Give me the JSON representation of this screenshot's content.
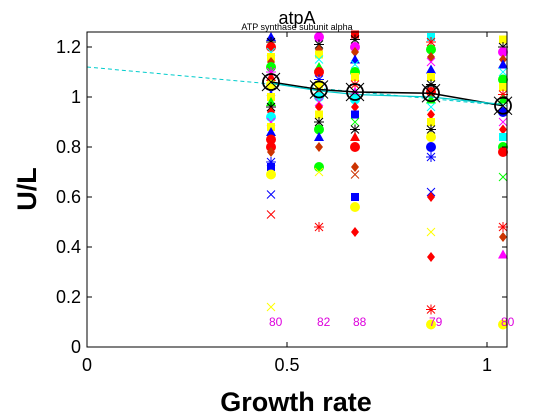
{
  "chart_data": {
    "type": "scatter",
    "title": "atpA",
    "subtitle": "ATP synthase subunit alpha",
    "xlabel": "Growth rate",
    "ylabel": "U/L",
    "xlim": [
      0,
      1.05
    ],
    "ylim": [
      0,
      1.26
    ],
    "xticks": [
      0,
      0.5,
      1
    ],
    "xtick_labels": [
      "0",
      "0.5",
      "1"
    ],
    "yticks": [
      0,
      0.2,
      0.4,
      0.6,
      0.8,
      1,
      1.2
    ],
    "ytick_labels": [
      "0",
      "0.2",
      "0.4",
      "0.6",
      "0.8",
      "1",
      "1.2"
    ],
    "grid": false,
    "legend": "none",
    "groups": [
      {
        "x": 0.46,
        "count_label": "80"
      },
      {
        "x": 0.58,
        "count_label": "82"
      },
      {
        "x": 0.67,
        "count_label": "88"
      },
      {
        "x": 0.86,
        "count_label": "79"
      },
      {
        "x": 1.04,
        "count_label": "80"
      }
    ],
    "mean_line": {
      "x": [
        0.46,
        0.58,
        0.67,
        0.86,
        1.04
      ],
      "y": [
        1.06,
        1.03,
        1.02,
        1.015,
        0.965
      ]
    },
    "median_line": {
      "x": [
        0.46,
        0.58,
        0.67,
        0.86,
        1.04
      ],
      "y": [
        1.055,
        1.025,
        1.01,
        1.0,
        0.97
      ]
    },
    "fit_line": {
      "x": [
        0,
        1.05
      ],
      "y": [
        1.12,
        0.965
      ]
    },
    "samples": [
      {
        "x": 0.46,
        "y": 1.24,
        "marker": "triangle",
        "color": "#0000ff"
      },
      {
        "x": 0.46,
        "y": 1.22,
        "marker": "star",
        "color": "#000000"
      },
      {
        "x": 0.46,
        "y": 1.2,
        "marker": "circle",
        "color": "#ff0000"
      },
      {
        "x": 0.46,
        "y": 1.18,
        "marker": "x",
        "color": "#00ffff"
      },
      {
        "x": 0.46,
        "y": 1.16,
        "marker": "square",
        "color": "#ffff00"
      },
      {
        "x": 0.46,
        "y": 1.14,
        "marker": "diamond",
        "color": "#cc3300"
      },
      {
        "x": 0.46,
        "y": 1.12,
        "marker": "circle",
        "color": "#00ff00"
      },
      {
        "x": 0.46,
        "y": 1.1,
        "marker": "star",
        "color": "#ff00ff"
      },
      {
        "x": 0.46,
        "y": 1.08,
        "marker": "triangle",
        "color": "#ff0000"
      },
      {
        "x": 0.46,
        "y": 1.05,
        "marker": "circle",
        "color": "#ffff00"
      },
      {
        "x": 0.46,
        "y": 1.02,
        "marker": "x",
        "color": "#0000ff"
      },
      {
        "x": 0.46,
        "y": 1.0,
        "marker": "square",
        "color": "#ffff00"
      },
      {
        "x": 0.46,
        "y": 0.98,
        "marker": "triangle",
        "color": "#00ff00"
      },
      {
        "x": 0.46,
        "y": 0.96,
        "marker": "star",
        "color": "#000000"
      },
      {
        "x": 0.46,
        "y": 0.94,
        "marker": "diamond",
        "color": "#ff0000"
      },
      {
        "x": 0.46,
        "y": 0.92,
        "marker": "circle",
        "color": "#00ffff"
      },
      {
        "x": 0.46,
        "y": 0.9,
        "marker": "x",
        "color": "#ff00ff"
      },
      {
        "x": 0.46,
        "y": 0.88,
        "marker": "square",
        "color": "#ffff00"
      },
      {
        "x": 0.46,
        "y": 0.86,
        "marker": "triangle",
        "color": "#0000ff"
      },
      {
        "x": 0.46,
        "y": 0.83,
        "marker": "circle",
        "color": "#ff0000"
      },
      {
        "x": 0.46,
        "y": 0.8,
        "marker": "circle",
        "color": "#ff0000"
      },
      {
        "x": 0.46,
        "y": 0.78,
        "marker": "diamond",
        "color": "#cc3300"
      },
      {
        "x": 0.46,
        "y": 0.74,
        "marker": "star",
        "color": "#0000ff"
      },
      {
        "x": 0.46,
        "y": 0.72,
        "marker": "square",
        "color": "#0000ff"
      },
      {
        "x": 0.46,
        "y": 0.69,
        "marker": "circle",
        "color": "#ffff00"
      },
      {
        "x": 0.46,
        "y": 0.61,
        "marker": "x",
        "color": "#0000ff"
      },
      {
        "x": 0.46,
        "y": 0.53,
        "marker": "x",
        "color": "#ff0000"
      },
      {
        "x": 0.46,
        "y": 0.16,
        "marker": "x",
        "color": "#ffff00"
      },
      {
        "x": 0.58,
        "y": 1.24,
        "marker": "circle",
        "color": "#ff00ff"
      },
      {
        "x": 0.58,
        "y": 1.21,
        "marker": "star",
        "color": "#000000"
      },
      {
        "x": 0.58,
        "y": 1.19,
        "marker": "diamond",
        "color": "#cc3300"
      },
      {
        "x": 0.58,
        "y": 1.17,
        "marker": "square",
        "color": "#ffff00"
      },
      {
        "x": 0.58,
        "y": 1.15,
        "marker": "x",
        "color": "#00ffff"
      },
      {
        "x": 0.58,
        "y": 1.12,
        "marker": "triangle",
        "color": "#00ff00"
      },
      {
        "x": 0.58,
        "y": 1.1,
        "marker": "circle",
        "color": "#ff0000"
      },
      {
        "x": 0.58,
        "y": 1.07,
        "marker": "star",
        "color": "#0000ff"
      },
      {
        "x": 0.58,
        "y": 1.05,
        "marker": "square",
        "color": "#ffff00"
      },
      {
        "x": 0.58,
        "y": 1.02,
        "marker": "triangle",
        "color": "#ff0000"
      },
      {
        "x": 0.58,
        "y": 1.0,
        "marker": "circle",
        "color": "#00ffff"
      },
      {
        "x": 0.58,
        "y": 0.98,
        "marker": "x",
        "color": "#ff00ff"
      },
      {
        "x": 0.58,
        "y": 0.96,
        "marker": "diamond",
        "color": "#ff0000"
      },
      {
        "x": 0.58,
        "y": 0.93,
        "marker": "square",
        "color": "#ffff00"
      },
      {
        "x": 0.58,
        "y": 0.9,
        "marker": "star",
        "color": "#000000"
      },
      {
        "x": 0.58,
        "y": 0.87,
        "marker": "circle",
        "color": "#00ff00"
      },
      {
        "x": 0.58,
        "y": 0.84,
        "marker": "triangle",
        "color": "#0000ff"
      },
      {
        "x": 0.58,
        "y": 0.8,
        "marker": "diamond",
        "color": "#cc3300"
      },
      {
        "x": 0.58,
        "y": 0.72,
        "marker": "circle",
        "color": "#00ff00"
      },
      {
        "x": 0.58,
        "y": 0.7,
        "marker": "x",
        "color": "#ffff00"
      },
      {
        "x": 0.58,
        "y": 0.48,
        "marker": "star",
        "color": "#ff0000"
      },
      {
        "x": 0.67,
        "y": 1.25,
        "marker": "square",
        "color": "#ff0000"
      },
      {
        "x": 0.67,
        "y": 1.23,
        "marker": "star",
        "color": "#000000"
      },
      {
        "x": 0.67,
        "y": 1.2,
        "marker": "circle",
        "color": "#ff00ff"
      },
      {
        "x": 0.67,
        "y": 1.18,
        "marker": "diamond",
        "color": "#cc3300"
      },
      {
        "x": 0.67,
        "y": 1.15,
        "marker": "triangle",
        "color": "#0000ff"
      },
      {
        "x": 0.67,
        "y": 1.13,
        "marker": "x",
        "color": "#00ffff"
      },
      {
        "x": 0.67,
        "y": 1.1,
        "marker": "circle",
        "color": "#00ff00"
      },
      {
        "x": 0.67,
        "y": 1.08,
        "marker": "square",
        "color": "#ffff00"
      },
      {
        "x": 0.67,
        "y": 1.05,
        "marker": "star",
        "color": "#ff0000"
      },
      {
        "x": 0.67,
        "y": 1.02,
        "marker": "triangle",
        "color": "#ff00ff"
      },
      {
        "x": 0.67,
        "y": 0.99,
        "marker": "circle",
        "color": "#00ffff"
      },
      {
        "x": 0.67,
        "y": 0.96,
        "marker": "diamond",
        "color": "#ff0000"
      },
      {
        "x": 0.67,
        "y": 0.93,
        "marker": "square",
        "color": "#0000ff"
      },
      {
        "x": 0.67,
        "y": 0.9,
        "marker": "x",
        "color": "#00ff00"
      },
      {
        "x": 0.67,
        "y": 0.87,
        "marker": "star",
        "color": "#000000"
      },
      {
        "x": 0.67,
        "y": 0.84,
        "marker": "triangle",
        "color": "#ff0000"
      },
      {
        "x": 0.67,
        "y": 0.8,
        "marker": "circle",
        "color": "#ff0000"
      },
      {
        "x": 0.67,
        "y": 0.72,
        "marker": "diamond",
        "color": "#cc3300"
      },
      {
        "x": 0.67,
        "y": 0.69,
        "marker": "x",
        "color": "#cc3300"
      },
      {
        "x": 0.67,
        "y": 0.6,
        "marker": "square",
        "color": "#0000ff"
      },
      {
        "x": 0.67,
        "y": 0.56,
        "marker": "circle",
        "color": "#ffff00"
      },
      {
        "x": 0.67,
        "y": 0.46,
        "marker": "diamond",
        "color": "#ff0000"
      },
      {
        "x": 0.86,
        "y": 1.24,
        "marker": "square",
        "color": "#00ffff"
      },
      {
        "x": 0.86,
        "y": 1.22,
        "marker": "star",
        "color": "#ff0000"
      },
      {
        "x": 0.86,
        "y": 1.19,
        "marker": "circle",
        "color": "#00ff00"
      },
      {
        "x": 0.86,
        "y": 1.16,
        "marker": "diamond",
        "color": "#cc3300"
      },
      {
        "x": 0.86,
        "y": 1.14,
        "marker": "x",
        "color": "#ff00ff"
      },
      {
        "x": 0.86,
        "y": 1.11,
        "marker": "triangle",
        "color": "#0000ff"
      },
      {
        "x": 0.86,
        "y": 1.08,
        "marker": "square",
        "color": "#ffff00"
      },
      {
        "x": 0.86,
        "y": 1.05,
        "marker": "star",
        "color": "#000000"
      },
      {
        "x": 0.86,
        "y": 1.02,
        "marker": "circle",
        "color": "#ff0000"
      },
      {
        "x": 0.86,
        "y": 0.99,
        "marker": "triangle",
        "color": "#00ff00"
      },
      {
        "x": 0.86,
        "y": 0.96,
        "marker": "x",
        "color": "#00ffff"
      },
      {
        "x": 0.86,
        "y": 0.93,
        "marker": "diamond",
        "color": "#ff0000"
      },
      {
        "x": 0.86,
        "y": 0.9,
        "marker": "square",
        "color": "#ffff00"
      },
      {
        "x": 0.86,
        "y": 0.87,
        "marker": "star",
        "color": "#000000"
      },
      {
        "x": 0.86,
        "y": 0.84,
        "marker": "circle",
        "color": "#ffff00"
      },
      {
        "x": 0.86,
        "y": 0.8,
        "marker": "circle",
        "color": "#0000ff"
      },
      {
        "x": 0.86,
        "y": 0.76,
        "marker": "star",
        "color": "#0000ff"
      },
      {
        "x": 0.86,
        "y": 0.62,
        "marker": "x",
        "color": "#0000ff"
      },
      {
        "x": 0.86,
        "y": 0.6,
        "marker": "diamond",
        "color": "#ff0000"
      },
      {
        "x": 0.86,
        "y": 0.46,
        "marker": "x",
        "color": "#ffff00"
      },
      {
        "x": 0.86,
        "y": 0.36,
        "marker": "diamond",
        "color": "#ff0000"
      },
      {
        "x": 0.86,
        "y": 0.15,
        "marker": "star",
        "color": "#ff0000"
      },
      {
        "x": 0.86,
        "y": 0.09,
        "marker": "circle",
        "color": "#ffff00"
      },
      {
        "x": 1.04,
        "y": 1.23,
        "marker": "square",
        "color": "#ffff00"
      },
      {
        "x": 1.04,
        "y": 1.2,
        "marker": "star",
        "color": "#000000"
      },
      {
        "x": 1.04,
        "y": 1.18,
        "marker": "circle",
        "color": "#ff00ff"
      },
      {
        "x": 1.04,
        "y": 1.15,
        "marker": "diamond",
        "color": "#cc3300"
      },
      {
        "x": 1.04,
        "y": 1.13,
        "marker": "triangle",
        "color": "#0000ff"
      },
      {
        "x": 1.04,
        "y": 1.1,
        "marker": "x",
        "color": "#00ffff"
      },
      {
        "x": 1.04,
        "y": 1.07,
        "marker": "circle",
        "color": "#00ff00"
      },
      {
        "x": 1.04,
        "y": 1.04,
        "marker": "square",
        "color": "#ffff00"
      },
      {
        "x": 1.04,
        "y": 1.01,
        "marker": "star",
        "color": "#ff0000"
      },
      {
        "x": 1.04,
        "y": 0.99,
        "marker": "triangle",
        "color": "#00ff00"
      },
      {
        "x": 1.04,
        "y": 0.94,
        "marker": "circle",
        "color": "#0000ff"
      },
      {
        "x": 1.04,
        "y": 0.9,
        "marker": "x",
        "color": "#ff00ff"
      },
      {
        "x": 1.04,
        "y": 0.87,
        "marker": "diamond",
        "color": "#ff0000"
      },
      {
        "x": 1.04,
        "y": 0.84,
        "marker": "square",
        "color": "#00ffff"
      },
      {
        "x": 1.04,
        "y": 0.8,
        "marker": "circle",
        "color": "#00ff00"
      },
      {
        "x": 1.04,
        "y": 0.78,
        "marker": "circle",
        "color": "#ff0000"
      },
      {
        "x": 1.04,
        "y": 0.68,
        "marker": "x",
        "color": "#00ff00"
      },
      {
        "x": 1.04,
        "y": 0.48,
        "marker": "star",
        "color": "#ff0000"
      },
      {
        "x": 1.04,
        "y": 0.44,
        "marker": "diamond",
        "color": "#cc3300"
      },
      {
        "x": 1.04,
        "y": 0.37,
        "marker": "triangle",
        "color": "#ff00ff"
      },
      {
        "x": 1.04,
        "y": 0.09,
        "marker": "circle",
        "color": "#ffff00"
      }
    ]
  }
}
